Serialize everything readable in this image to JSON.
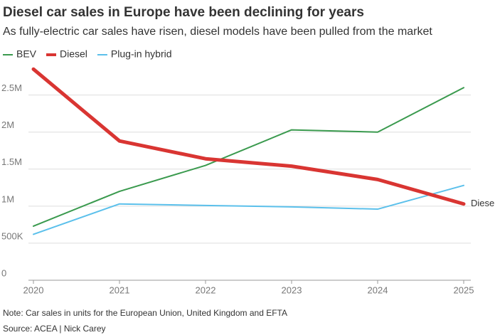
{
  "chart_data": {
    "type": "line",
    "title": "Diesel car sales in Europe have been declining for years",
    "subtitle": "As fully-electric car sales have risen, diesel models have been pulled from the market",
    "note": "Note: Car sales in units for the European Union, United Kingdom and EFTA",
    "source": "Source: ACEA | Nick Carey",
    "x": [
      2020,
      2021,
      2022,
      2023,
      2024,
      2025
    ],
    "xlim": [
      2020,
      2025
    ],
    "xticks": [
      2020,
      2021,
      2022,
      2023,
      2024,
      2025
    ],
    "ylim": [
      0,
      2900000
    ],
    "yticks": [
      0,
      {
        "value": 500000,
        "label": "500K"
      },
      {
        "value": 1000000,
        "label": "1M"
      },
      {
        "value": 1500000,
        "label": "1.5M"
      },
      {
        "value": 2000000,
        "label": "2M"
      },
      {
        "value": 2500000,
        "label": "2.5M"
      }
    ],
    "grid": true,
    "series": [
      {
        "name": "BEV",
        "color": "#3a9a4e",
        "values": [
          730000,
          1200000,
          1550000,
          2030000,
          2000000,
          2600000
        ]
      },
      {
        "name": "Diesel",
        "color": "#d93532",
        "values": [
          2850000,
          1880000,
          1640000,
          1540000,
          1360000,
          1030000
        ]
      },
      {
        "name": "Plug-in hybrid",
        "color": "#5bc0eb",
        "values": [
          620000,
          1030000,
          1010000,
          990000,
          960000,
          1280000
        ]
      }
    ]
  }
}
